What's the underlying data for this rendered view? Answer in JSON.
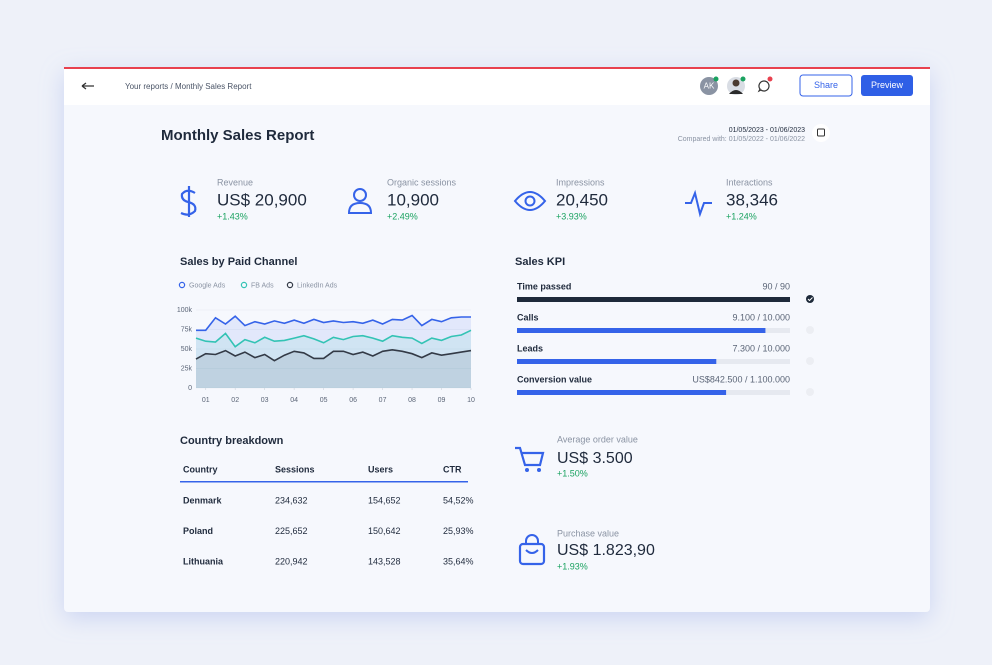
{
  "header": {
    "breadcrumb": "Your reports / Monthly Sales Report",
    "avatar": "AK",
    "share": "Share",
    "preview": "Preview"
  },
  "report": {
    "title": "Monthly Sales Report",
    "date_range": "01/05/2023 - 01/06/2023",
    "compared": "Compared with: 01/05/2022 - 01/06/2022"
  },
  "metrics": [
    {
      "label": "Revenue",
      "value": "US$ 20,900",
      "change": "+1.43%"
    },
    {
      "label": "Organic sessions",
      "value": "10,900",
      "change": "+2.49%"
    },
    {
      "label": "Impressions",
      "value": "20,450",
      "change": "+3.93%"
    },
    {
      "label": "Interactions",
      "value": "38,346",
      "change": "+1.24%"
    }
  ],
  "chart_data": {
    "type": "line",
    "title": "Sales by Paid Channel",
    "x": [
      0.67,
      1,
      1.33,
      1.67,
      2,
      2.33,
      2.67,
      3,
      3.33,
      3.67,
      4,
      4.33,
      4.67,
      5,
      5.33,
      5.67,
      6,
      6.33,
      6.67,
      7,
      7.33,
      7.67,
      8,
      8.33,
      8.67,
      9,
      9.33,
      9.67,
      10
    ],
    "xlim": [
      0.67,
      10
    ],
    "xticks": [
      {
        "value": 1,
        "label": "01"
      },
      {
        "value": 2,
        "label": "02"
      },
      {
        "value": 3,
        "label": "03"
      },
      {
        "value": 4,
        "label": "04"
      },
      {
        "value": 5,
        "label": "05"
      },
      {
        "value": 6,
        "label": "06"
      },
      {
        "value": 7,
        "label": "07"
      },
      {
        "value": 8,
        "label": "08"
      },
      {
        "value": 9,
        "label": "09"
      },
      {
        "value": 10,
        "label": "10"
      }
    ],
    "ylim": [
      0,
      100000
    ],
    "yticks": [
      0,
      {
        "value": 25000,
        "label": "25k"
      },
      {
        "value": 50000,
        "label": "50k"
      },
      {
        "value": 75000,
        "label": "75k"
      },
      {
        "value": 100000,
        "label": "100k"
      }
    ],
    "series": [
      {
        "name": "Google Ads",
        "color": "#3563e9",
        "values": [
          74000,
          74000,
          90000,
          82000,
          92000,
          80000,
          85000,
          82000,
          86000,
          83000,
          87000,
          83000,
          88000,
          84000,
          86000,
          84000,
          85000,
          83000,
          87000,
          82000,
          88000,
          87000,
          93000,
          80000,
          88000,
          85000,
          90000,
          91000,
          91000
        ]
      },
      {
        "name": "FB Ads",
        "color": "#33c3b4",
        "values": [
          64000,
          60000,
          59000,
          70000,
          53000,
          62000,
          58000,
          65000,
          60000,
          61000,
          64000,
          67000,
          63000,
          58000,
          65000,
          62000,
          66000,
          67000,
          64000,
          60000,
          67000,
          65000,
          64000,
          57000,
          64000,
          61000,
          66000,
          68000,
          74000
        ]
      },
      {
        "name": "LinkedIn Ads",
        "color": "#333a46",
        "values": [
          37000,
          44000,
          43000,
          48000,
          41000,
          46000,
          39000,
          43000,
          35000,
          42000,
          47000,
          45000,
          38000,
          38000,
          47000,
          47000,
          43000,
          46000,
          41000,
          47000,
          49000,
          47000,
          44000,
          39000,
          45000,
          42000,
          44000,
          46000,
          48000
        ]
      }
    ]
  },
  "kpi": {
    "title": "Sales KPI",
    "items": [
      {
        "label": "Time passed",
        "value": 90,
        "target": 90,
        "value_label": "90 / 90"
      },
      {
        "label": "Calls",
        "value": 9100,
        "target": 10000,
        "value_label": "9.100 / 10.000"
      },
      {
        "label": "Leads",
        "value": 7300,
        "target": 10000,
        "value_label": "7.300 / 10.000"
      },
      {
        "label": "Conversion value",
        "value": 842500,
        "target": 1100000,
        "value_label": "US$842.500 / 1.100.000"
      }
    ]
  },
  "table": {
    "title": "Country breakdown",
    "columns": [
      "Country",
      "Sessions",
      "Users",
      "CTR"
    ],
    "rows": [
      [
        "Denmark",
        "234,632",
        "154,652",
        "54,52%"
      ],
      [
        "Poland",
        "225,652",
        "150,642",
        "25,93%"
      ],
      [
        "Lithuania",
        "220,942",
        "143,528",
        "35,64%"
      ]
    ]
  },
  "summary": [
    {
      "label": "Average order value",
      "value": "US$ 3.500",
      "change": "+1.50%"
    },
    {
      "label": "Purchase value",
      "value": "US$ 1.823,90",
      "change": "+1.93%"
    }
  ]
}
